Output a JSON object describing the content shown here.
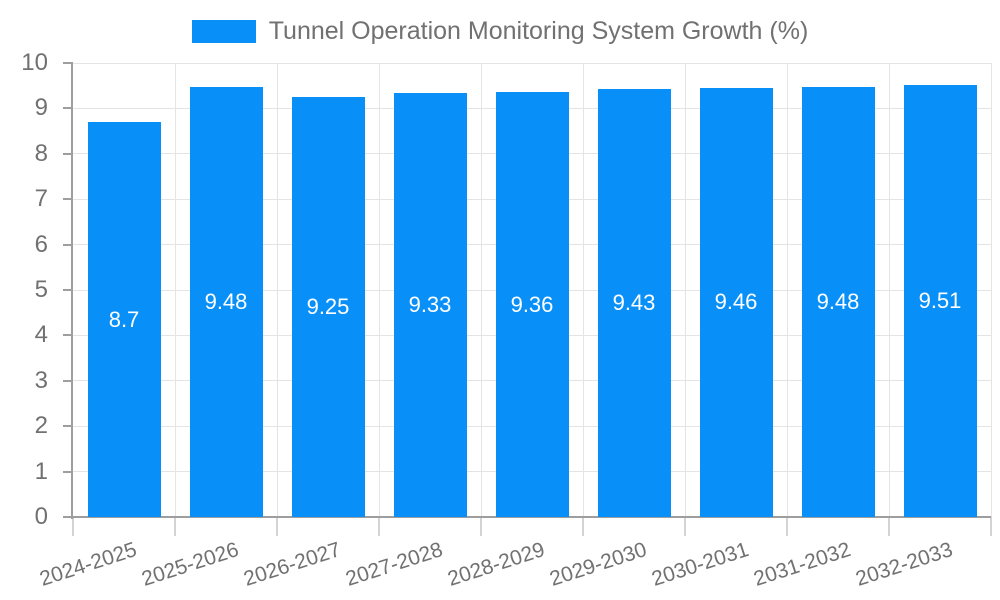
{
  "chart_data": {
    "type": "bar",
    "title": "Tunnel Operation Monitoring System Growth (%)",
    "categories": [
      "2024-2025",
      "2025-2026",
      "2026-2027",
      "2027-2028",
      "2028-2029",
      "2029-2030",
      "2030-2031",
      "2031-2032",
      "2032-2033"
    ],
    "values": [
      8.7,
      9.48,
      9.25,
      9.33,
      9.36,
      9.43,
      9.46,
      9.48,
      9.51
    ],
    "value_labels": [
      "8.7",
      "9.48",
      "9.25",
      "9.33",
      "9.36",
      "9.43",
      "9.46",
      "9.48",
      "9.51"
    ],
    "xlabel": "",
    "ylabel": "",
    "ylim": [
      0,
      10
    ],
    "ytick_step": 1,
    "ytick_labels": [
      "0",
      "1",
      "2",
      "3",
      "4",
      "5",
      "6",
      "7",
      "8",
      "9",
      "10"
    ],
    "grid": true,
    "legend_position": "top",
    "colors": {
      "bar": "#0990f8",
      "grid": "#e4e4e4",
      "axis": "#9e9e9e",
      "x_tick": "#d4d4d4",
      "text": "#717171",
      "value_label": "#ffffff",
      "background": "#ffffff"
    }
  }
}
